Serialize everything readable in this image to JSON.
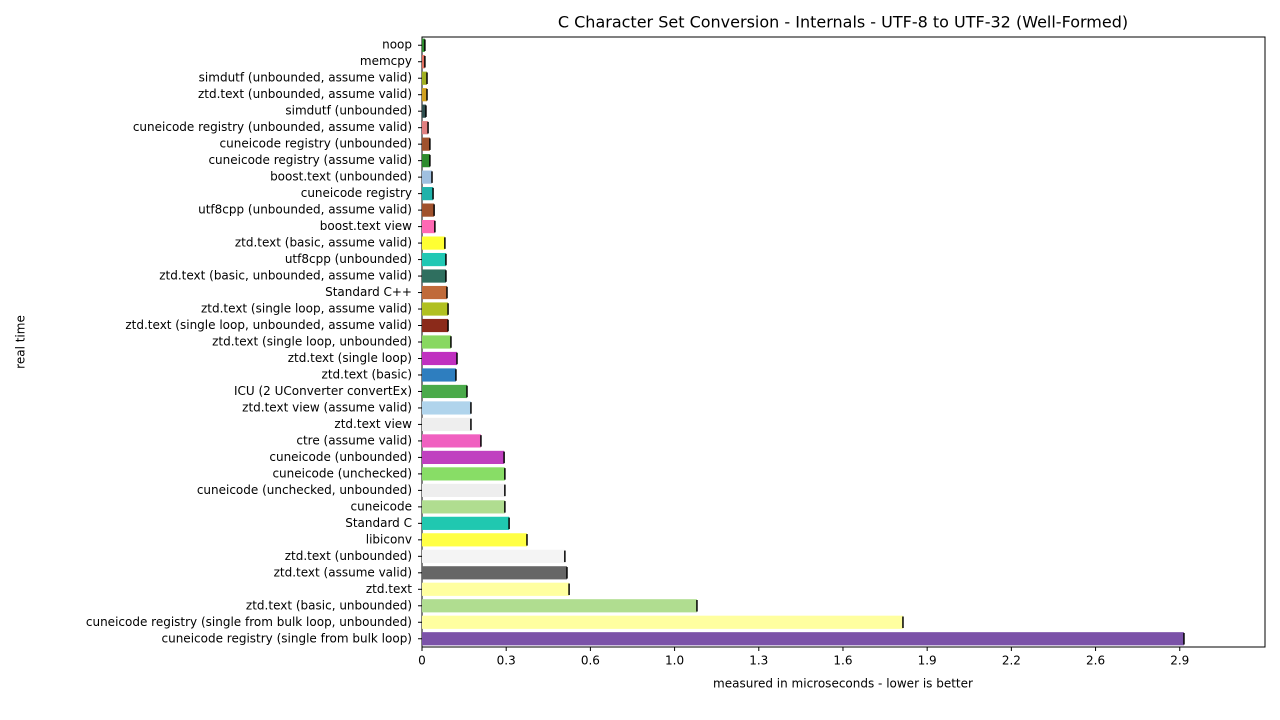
{
  "chart_data": {
    "type": "bar",
    "orientation": "horizontal",
    "title": "C Character Set Conversion - Internals - UTF-8 to UTF-32 (Well-Formed)",
    "xlabel": "measured in microseconds - lower is better",
    "ylabel": "real time",
    "categories": [
      "noop",
      "memcpy",
      "simdutf (unbounded, assume valid)",
      "ztd.text (unbounded, assume valid)",
      "simdutf (unbounded)",
      "cuneicode registry (unbounded, assume valid)",
      "cuneicode registry (unbounded)",
      "cuneicode registry (assume valid)",
      "boost.text (unbounded)",
      "cuneicode registry",
      "utf8cpp (unbounded, assume valid)",
      "boost.text view",
      "ztd.text (basic, assume valid)",
      "utf8cpp (unbounded)",
      "ztd.text (basic, unbounded, assume valid)",
      "Standard C++",
      "ztd.text (single loop, assume valid)",
      "ztd.text (single loop, unbounded, assume valid)",
      "ztd.text (single loop, unbounded)",
      "ztd.text (single loop)",
      "ztd.text (basic)",
      "ICU (2 UConverter convertEx)",
      "ztd.text view (assume valid)",
      "ztd.text view",
      "ctre (assume valid)",
      "cuneicode (unbounded)",
      "cuneicode (unchecked)",
      "cuneicode (unchecked, unbounded)",
      "cuneicode",
      "Standard C",
      "libiconv",
      "ztd.text (unbounded)",
      "ztd.text (assume valid)",
      "ztd.text",
      "ztd.text (basic, unbounded)",
      "cuneicode registry (single from bulk loop, unbounded)",
      "cuneicode registry (single from bulk loop)"
    ],
    "values": [
      0.011,
      0.011,
      0.019,
      0.019,
      0.015,
      0.023,
      0.03,
      0.03,
      0.038,
      0.042,
      0.046,
      0.049,
      0.087,
      0.091,
      0.091,
      0.095,
      0.099,
      0.099,
      0.11,
      0.133,
      0.129,
      0.171,
      0.186,
      0.186,
      0.224,
      0.312,
      0.315,
      0.315,
      0.315,
      0.331,
      0.399,
      0.543,
      0.551,
      0.559,
      1.045,
      1.828,
      2.896
    ],
    "colors": [
      "#2e8b2e",
      "#e07060",
      "#a0b020",
      "#d0a020",
      "#2f4f4f",
      "#e08080",
      "#a0522d",
      "#2e8b2e",
      "#a0c0e0",
      "#20b2aa",
      "#a0522d",
      "#ff69b4",
      "#ffff33",
      "#20c8b4",
      "#2f6f5f",
      "#c06a3a",
      "#b0c020",
      "#8b2a1a",
      "#88d860",
      "#c030c0",
      "#2e7ebf",
      "#4aaa4a",
      "#b0d4ec",
      "#eeeeee",
      "#f060c0",
      "#c040c0",
      "#88dd66",
      "#eeeeee",
      "#b0dd90",
      "#20c8b0",
      "#ffff44",
      "#f4f4f4",
      "#666666",
      "#ffffa0",
      "#b0dd90",
      "#ffffa0",
      "#7b52a8"
    ],
    "xlim": [
      0,
      3.204
    ],
    "xticks": [
      0,
      {
        "value": 0.32,
        "label": "0.3"
      },
      {
        "value": 0.64,
        "label": "0.6"
      },
      {
        "value": 0.96,
        "label": "1.0"
      },
      {
        "value": 1.28,
        "label": "1.3"
      },
      {
        "value": 1.6,
        "label": "1.6"
      },
      {
        "value": 1.92,
        "label": "1.9"
      },
      {
        "value": 2.24,
        "label": "2.2"
      },
      {
        "value": 2.56,
        "label": "2.6"
      },
      {
        "value": 2.88,
        "label": "2.9"
      }
    ]
  }
}
